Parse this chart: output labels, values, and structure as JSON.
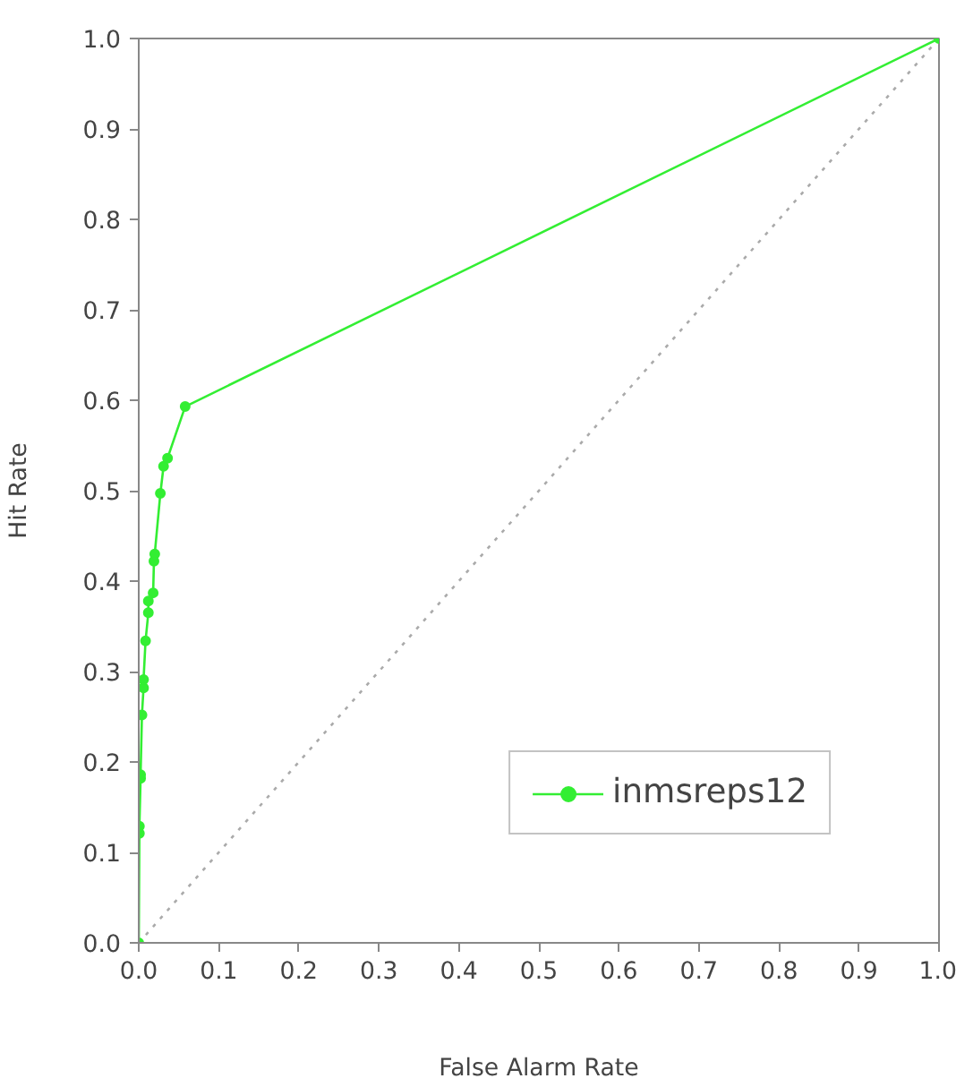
{
  "chart_data": {
    "type": "line",
    "xlabel": "False Alarm Rate",
    "ylabel": "Hit Rate",
    "xlim": [
      0,
      1
    ],
    "ylim": [
      0,
      1
    ],
    "xticks": [
      {
        "value": 0,
        "label": "0.0"
      },
      {
        "value": 0.1,
        "label": "0.1"
      },
      {
        "value": 0.2,
        "label": "0.2"
      },
      {
        "value": 0.3,
        "label": "0.3"
      },
      {
        "value": 0.4,
        "label": "0.4"
      },
      {
        "value": 0.5,
        "label": "0.5"
      },
      {
        "value": 0.6,
        "label": "0.6"
      },
      {
        "value": 0.7,
        "label": "0.7"
      },
      {
        "value": 0.8,
        "label": "0.8"
      },
      {
        "value": 0.9,
        "label": "0.9"
      },
      {
        "value": 1,
        "label": "1.0"
      }
    ],
    "yticks": [
      {
        "value": 0,
        "label": "0.0"
      },
      {
        "value": 0.1,
        "label": "0.1"
      },
      {
        "value": 0.2,
        "label": "0.2"
      },
      {
        "value": 0.3,
        "label": "0.3"
      },
      {
        "value": 0.4,
        "label": "0.4"
      },
      {
        "value": 0.5,
        "label": "0.5"
      },
      {
        "value": 0.6,
        "label": "0.6"
      },
      {
        "value": 0.7,
        "label": "0.7"
      },
      {
        "value": 0.8,
        "label": "0.8"
      },
      {
        "value": 0.9,
        "label": "0.9"
      },
      {
        "value": 1,
        "label": "1.0"
      }
    ],
    "grid": false,
    "legend": "bottom right",
    "series": [
      {
        "name": "inmsreps12",
        "color": "#33ee33",
        "marker": "circle",
        "line_style": "solid",
        "x": [
          0,
          0.0008,
          0.0008,
          0.0023,
          0.0023,
          0.004,
          0.006,
          0.006,
          0.0085,
          0.012,
          0.012,
          0.018,
          0.019,
          0.02,
          0.027,
          0.031,
          0.036,
          0.058,
          1
        ],
        "values": [
          0,
          0.121,
          0.129,
          0.182,
          0.186,
          0.252,
          0.282,
          0.291,
          0.334,
          0.365,
          0.378,
          0.387,
          0.422,
          0.43,
          0.497,
          0.527,
          0.536,
          0.593,
          1
        ]
      },
      {
        "color": "#aaaaaa",
        "marker": "none",
        "line_style": "dotted",
        "x": [
          0,
          1
        ],
        "values": [
          0,
          1
        ]
      }
    ]
  }
}
